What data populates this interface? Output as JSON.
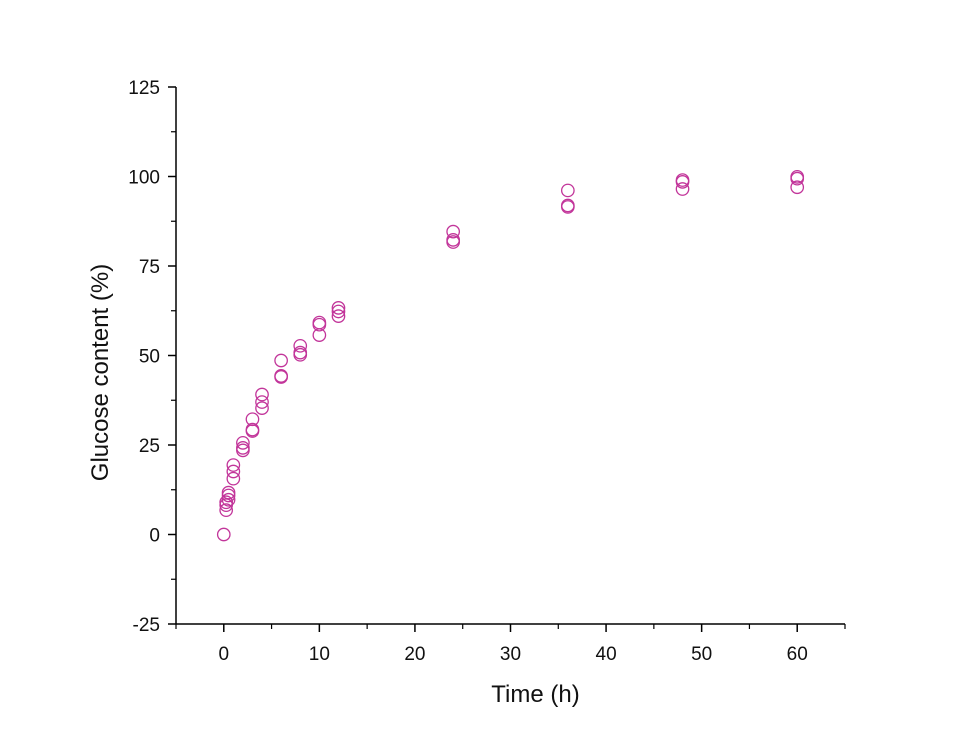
{
  "chart_data": {
    "type": "scatter",
    "xlabel": "Time (h)",
    "ylabel": "Glucose content (%)",
    "xlim": [
      -5,
      65
    ],
    "ylim": [
      -25,
      125
    ],
    "x_ticks": [
      0,
      10,
      20,
      30,
      40,
      50,
      60
    ],
    "x_tick_labels": [
      "0",
      "10",
      "20",
      "30",
      "40",
      "50",
      "60"
    ],
    "y_ticks": [
      -25,
      0,
      25,
      50,
      75,
      100,
      125
    ],
    "y_tick_labels": [
      "-25",
      "0",
      "25",
      "50",
      "75",
      "100",
      "125"
    ],
    "grid": false,
    "marker": "open-circle",
    "marker_color": "#c2359a",
    "series": [
      {
        "points": [
          [
            0,
            0
          ],
          [
            0.25,
            6.8
          ],
          [
            0.25,
            8.2
          ],
          [
            0.25,
            9.0
          ],
          [
            0.5,
            9.7
          ],
          [
            0.5,
            10.9
          ],
          [
            0.5,
            11.7
          ],
          [
            1,
            15.6
          ],
          [
            1,
            17.6
          ],
          [
            1,
            19.4
          ],
          [
            2,
            23.5
          ],
          [
            2,
            24.2
          ],
          [
            2,
            25.6
          ],
          [
            3,
            28.9
          ],
          [
            3,
            29.3
          ],
          [
            3,
            32.2
          ],
          [
            4,
            35.3
          ],
          [
            4,
            37.0
          ],
          [
            4,
            39.1
          ],
          [
            6,
            44.0
          ],
          [
            6,
            44.3
          ],
          [
            6,
            48.6
          ],
          [
            8,
            50.2
          ],
          [
            8,
            50.8
          ],
          [
            8,
            52.7
          ],
          [
            10,
            55.7
          ],
          [
            10,
            58.6
          ],
          [
            10,
            59.2
          ],
          [
            12,
            61.0
          ],
          [
            12,
            62.3
          ],
          [
            12,
            63.3
          ],
          [
            24,
            81.7
          ],
          [
            24,
            82.3
          ],
          [
            24,
            84.6
          ],
          [
            36,
            91.5
          ],
          [
            36,
            91.9
          ],
          [
            36,
            96.1
          ],
          [
            48,
            96.5
          ],
          [
            48,
            98.5
          ],
          [
            48,
            99.0
          ],
          [
            60,
            97.0
          ],
          [
            60,
            99.4
          ],
          [
            60,
            99.9
          ]
        ]
      }
    ]
  }
}
